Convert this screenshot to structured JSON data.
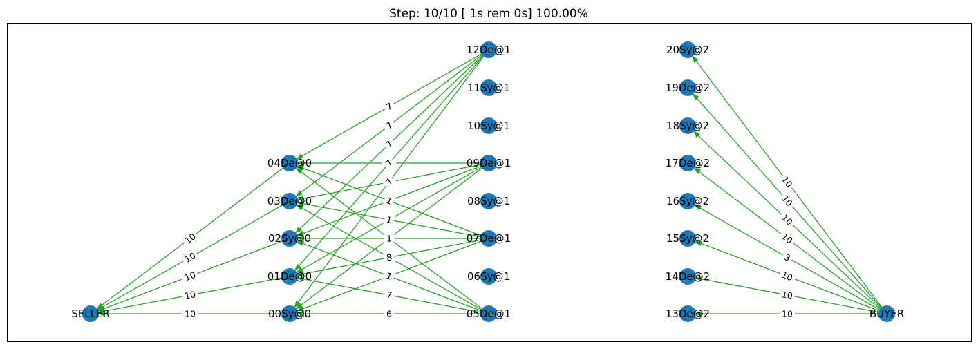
{
  "title": "Step: 10/10 [ 1s rem  0s] 100.00%",
  "colors": {
    "node": "#1f77b4",
    "edge": "#2ca02c",
    "frame": "#000000",
    "label_bg": "#ffffff"
  },
  "nodes": [
    {
      "id": "SELLER",
      "label": "SELLER"
    },
    {
      "id": "00",
      "label": "00Sy@0"
    },
    {
      "id": "01",
      "label": "01De@0"
    },
    {
      "id": "02",
      "label": "02Sy@0"
    },
    {
      "id": "03",
      "label": "03De@0"
    },
    {
      "id": "04",
      "label": "04De@0"
    },
    {
      "id": "05",
      "label": "05De@1"
    },
    {
      "id": "06",
      "label": "06Sy@1"
    },
    {
      "id": "07",
      "label": "07De@1"
    },
    {
      "id": "08",
      "label": "08Sy@1"
    },
    {
      "id": "09",
      "label": "09De@1"
    },
    {
      "id": "10",
      "label": "10Sy@1"
    },
    {
      "id": "11",
      "label": "11Sy@1"
    },
    {
      "id": "12",
      "label": "12De@1"
    },
    {
      "id": "13",
      "label": "13De@2"
    },
    {
      "id": "14",
      "label": "14De@2"
    },
    {
      "id": "15",
      "label": "15Sy@2"
    },
    {
      "id": "16",
      "label": "16Sy@2"
    },
    {
      "id": "17",
      "label": "17De@2"
    },
    {
      "id": "18",
      "label": "18Sy@2"
    },
    {
      "id": "19",
      "label": "19De@2"
    },
    {
      "id": "20",
      "label": "20Sy@2"
    },
    {
      "id": "BUYER",
      "label": "BUYER"
    }
  ],
  "edges": [
    {
      "from": "00",
      "to": "SELLER",
      "label": "10"
    },
    {
      "from": "01",
      "to": "SELLER",
      "label": "10"
    },
    {
      "from": "02",
      "to": "SELLER",
      "label": "10"
    },
    {
      "from": "03",
      "to": "SELLER",
      "label": "10"
    },
    {
      "from": "04",
      "to": "SELLER",
      "label": "10"
    },
    {
      "from": "12",
      "to": "04",
      "label": "7"
    },
    {
      "from": "12",
      "to": "03",
      "label": "7"
    },
    {
      "from": "12",
      "to": "02",
      "label": "7"
    },
    {
      "from": "12",
      "to": "01",
      "label": "7"
    },
    {
      "from": "12",
      "to": "00",
      "label": "7"
    },
    {
      "from": "09",
      "to": "04",
      "label": ""
    },
    {
      "from": "09",
      "to": "03",
      "label": ""
    },
    {
      "from": "09",
      "to": "02",
      "label": ""
    },
    {
      "from": "09",
      "to": "01",
      "label": ""
    },
    {
      "from": "09",
      "to": "00",
      "label": ""
    },
    {
      "from": "07",
      "to": "04",
      "label": "1"
    },
    {
      "from": "07",
      "to": "03",
      "label": "1"
    },
    {
      "from": "07",
      "to": "02",
      "label": "1"
    },
    {
      "from": "07",
      "to": "01",
      "label": "8"
    },
    {
      "from": "07",
      "to": "00",
      "label": ""
    },
    {
      "from": "05",
      "to": "04",
      "label": ""
    },
    {
      "from": "05",
      "to": "03",
      "label": ""
    },
    {
      "from": "05",
      "to": "02",
      "label": "1"
    },
    {
      "from": "05",
      "to": "01",
      "label": "7"
    },
    {
      "from": "05",
      "to": "00",
      "label": "6"
    },
    {
      "from": "BUYER",
      "to": "13",
      "label": "10"
    },
    {
      "from": "BUYER",
      "to": "14",
      "label": "10"
    },
    {
      "from": "BUYER",
      "to": "15",
      "label": "10"
    },
    {
      "from": "BUYER",
      "to": "16",
      "label": "3"
    },
    {
      "from": "BUYER",
      "to": "17",
      "label": "10"
    },
    {
      "from": "BUYER",
      "to": "18",
      "label": "10"
    },
    {
      "from": "BUYER",
      "to": "19",
      "label": "10"
    },
    {
      "from": "BUYER",
      "to": "20",
      "label": "10"
    }
  ]
}
